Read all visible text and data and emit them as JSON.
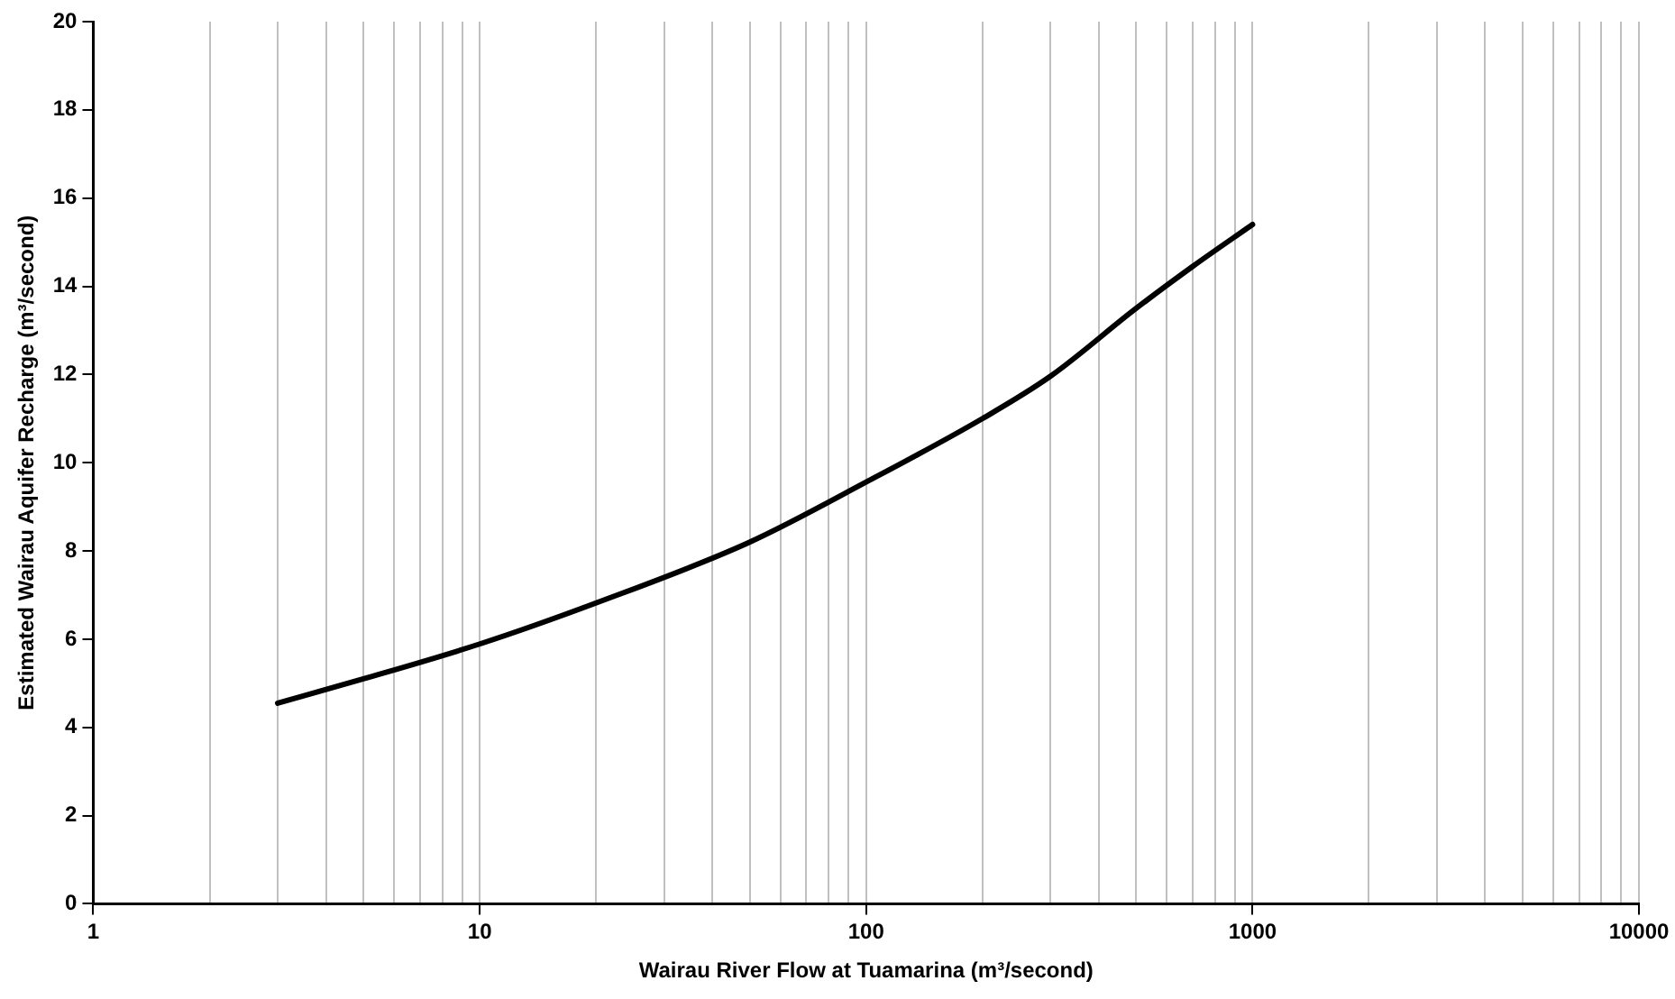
{
  "chart_data": {
    "type": "line",
    "xlabel": "Wairau River Flow at Tuamarina (m³/second)",
    "ylabel": "Estimated Wairau Aquifer Recharge (m³/second)",
    "log": "x",
    "grid": "x",
    "legend": false,
    "marker": "none",
    "line_style": "solid",
    "xlim": [
      1,
      10000
    ],
    "xticks": [
      1,
      {
        "value": 2,
        "label": null
      },
      {
        "value": 3,
        "label": null
      },
      {
        "value": 4,
        "label": null
      },
      {
        "value": 5,
        "label": null
      },
      {
        "value": 6,
        "label": null
      },
      {
        "value": 7,
        "label": null
      },
      {
        "value": 8,
        "label": null
      },
      {
        "value": 9,
        "label": null
      },
      10,
      {
        "value": 20,
        "label": null
      },
      {
        "value": 30,
        "label": null
      },
      {
        "value": 40,
        "label": null
      },
      {
        "value": 50,
        "label": null
      },
      {
        "value": 60,
        "label": null
      },
      {
        "value": 70,
        "label": null
      },
      {
        "value": 80,
        "label": null
      },
      {
        "value": 90,
        "label": null
      },
      100,
      {
        "value": 200,
        "label": null
      },
      {
        "value": 300,
        "label": null
      },
      {
        "value": 400,
        "label": null
      },
      {
        "value": 500,
        "label": null
      },
      {
        "value": 600,
        "label": null
      },
      {
        "value": 700,
        "label": null
      },
      {
        "value": 800,
        "label": null
      },
      {
        "value": 900,
        "label": null
      },
      1000,
      {
        "value": 2000,
        "label": null
      },
      {
        "value": 3000,
        "label": null
      },
      {
        "value": 4000,
        "label": null
      },
      {
        "value": 5000,
        "label": null
      },
      {
        "value": 6000,
        "label": null
      },
      {
        "value": 7000,
        "label": null
      },
      {
        "value": 8000,
        "label": null
      },
      {
        "value": 9000,
        "label": null
      },
      10000
    ],
    "ylim": [
      0,
      20
    ],
    "yticks": [
      0,
      2,
      4,
      6,
      8,
      10,
      12,
      14,
      16,
      18,
      20
    ],
    "x": [
      3,
      5,
      10,
      20,
      50,
      100,
      200,
      300,
      500,
      700,
      1000
    ],
    "series": [
      {
        "color": "#000000",
        "values": [
          4.55,
          5.1,
          5.89,
          6.82,
          8.2,
          9.56,
          11.0,
          11.96,
          13.5,
          14.45,
          15.4
        ]
      }
    ]
  }
}
